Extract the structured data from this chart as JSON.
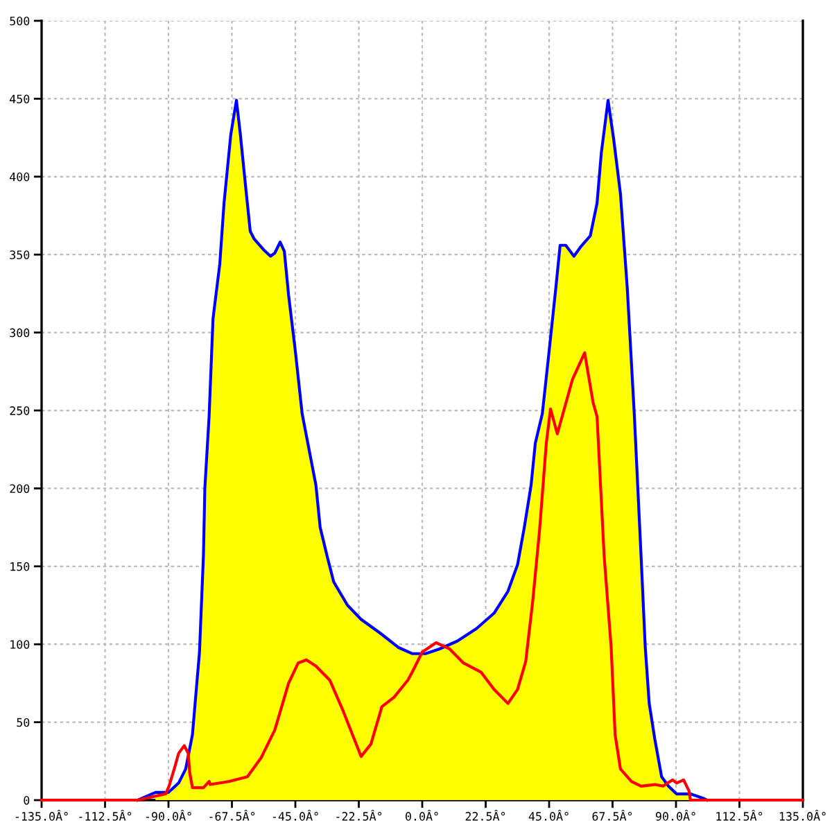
{
  "chart_data": {
    "type": "area",
    "xlim": [
      -135,
      135
    ],
    "ylim": [
      0,
      500
    ],
    "xticks": [
      {
        "value": -135,
        "label": "-135.0Â°"
      },
      {
        "value": -112.5,
        "label": "-112.5Â°"
      },
      {
        "value": -90,
        "label": "-90.0Â°"
      },
      {
        "value": -67.5,
        "label": "-67.5Â°"
      },
      {
        "value": -45,
        "label": "-45.0Â°"
      },
      {
        "value": -22.5,
        "label": "-22.5Â°"
      },
      {
        "value": 0,
        "label": "0.0Â°"
      },
      {
        "value": 22.5,
        "label": "22.5Â°"
      },
      {
        "value": 45,
        "label": "45.0Â°"
      },
      {
        "value": 67.5,
        "label": "67.5Â°"
      },
      {
        "value": 90,
        "label": "90.0Â°"
      },
      {
        "value": 112.5,
        "label": "112.5Â°"
      },
      {
        "value": 135,
        "label": "135.0Â°"
      }
    ],
    "yticks": [
      0,
      50,
      100,
      150,
      200,
      250,
      300,
      350,
      400,
      450,
      500
    ],
    "grid": true,
    "series": [
      {
        "color": "#ffff00",
        "x": [
          -94.6,
          -90,
          -86.4,
          -83.9,
          -81.5,
          -79,
          -77.6,
          -77.1,
          -75.6,
          -74.2,
          -71.8,
          -70.3,
          -67.9,
          -65.9,
          -64.5,
          -63,
          -61,
          -59.6,
          -56.2,
          -53.8,
          -52.3,
          -50.4,
          -48.9,
          -47.4,
          -45,
          -42.6,
          -37.7,
          -36.2,
          -33.8,
          -31.4,
          -26.5,
          -21.7,
          -14.8,
          -8.5,
          -3.6,
          1.2,
          6.1,
          12.4,
          19.2,
          25.5,
          30.4,
          33.8,
          36.2,
          38.6,
          40.1,
          42.6,
          45,
          47.4,
          48.9,
          50.9,
          53.8,
          56.2,
          59.6,
          62,
          63.5,
          65.9,
          67.9,
          70.3,
          72.7,
          75.2,
          77.6,
          79.1,
          80.5,
          82.5,
          84.9,
          87.3,
          90.2,
          95.1
        ],
        "values": [
          5,
          5,
          11,
          20,
          42,
          95,
          157,
          200,
          246,
          309,
          344,
          383,
          427,
          449,
          427,
          400,
          365,
          360,
          353,
          349,
          351,
          358,
          352,
          324,
          288,
          248,
          202,
          175,
          157,
          140,
          125,
          116,
          107,
          98,
          94,
          94,
          97,
          102,
          110,
          120,
          134,
          151,
          175,
          202,
          229,
          248,
          288,
          329,
          356,
          356,
          349,
          355,
          362,
          383,
          415,
          449,
          424,
          389,
          329,
          248,
          157,
          98,
          62,
          39,
          15,
          9,
          4,
          4
        ]
      },
      {
        "type": "line",
        "color": "#0000ff",
        "x": [
          -101,
          -94.6,
          -90,
          -86.4,
          -83.9,
          -81.5,
          -79,
          -77.6,
          -77.1,
          -75.6,
          -74.2,
          -71.8,
          -70.3,
          -67.9,
          -65.9,
          -64.5,
          -63,
          -61,
          -59.6,
          -56.2,
          -53.8,
          -52.3,
          -50.4,
          -48.9,
          -47.4,
          -45,
          -42.6,
          -37.7,
          -36.2,
          -33.8,
          -31.4,
          -26.5,
          -21.7,
          -14.8,
          -8.5,
          -3.6,
          1.2,
          6.1,
          12.4,
          19.2,
          25.5,
          30.4,
          33.8,
          36.2,
          38.6,
          40.1,
          42.6,
          45,
          47.4,
          48.9,
          50.9,
          53.8,
          56.2,
          59.6,
          62,
          63.5,
          65.9,
          67.9,
          70.3,
          72.7,
          75.2,
          77.6,
          79.1,
          80.5,
          82.5,
          84.9,
          87.3,
          90.2,
          95.1,
          99.9,
          101
        ],
        "values": [
          0,
          5,
          5,
          11,
          20,
          42,
          95,
          157,
          200,
          246,
          309,
          344,
          383,
          427,
          449,
          427,
          400,
          365,
          360,
          353,
          349,
          351,
          358,
          352,
          324,
          288,
          248,
          202,
          175,
          157,
          140,
          125,
          116,
          107,
          98,
          94,
          94,
          97,
          102,
          110,
          120,
          134,
          151,
          175,
          202,
          229,
          248,
          288,
          329,
          356,
          356,
          349,
          355,
          362,
          383,
          415,
          449,
          424,
          389,
          329,
          248,
          157,
          98,
          62,
          39,
          15,
          9,
          4,
          4,
          1,
          0
        ]
      },
      {
        "type": "line",
        "color": "#ff0000",
        "x": [
          -135,
          -101,
          -96,
          -91,
          -89.8,
          -87.8,
          -86.4,
          -84.4,
          -83,
          -82.5,
          -81.5,
          -77.6,
          -75.6,
          -75.2,
          -68.4,
          -62,
          -57.2,
          -52.3,
          -47.4,
          -44,
          -41.1,
          -37.7,
          -32.8,
          -28,
          -21.7,
          -18.2,
          -14.3,
          -10,
          -5.1,
          -3.6,
          0,
          4.9,
          9.7,
          14.6,
          20.9,
          25.5,
          30.4,
          33.8,
          36.7,
          39.2,
          41.6,
          44,
          45.5,
          47.9,
          53.3,
          57.6,
          60.6,
          62,
          64.5,
          67,
          68.4,
          70.3,
          74.2,
          77.6,
          82.5,
          85.4,
          88.8,
          90.2,
          92.7,
          94.6,
          95.1,
          135
        ],
        "values": [
          0,
          0,
          2,
          4,
          9,
          21,
          30,
          35,
          30,
          18,
          8,
          8,
          12,
          10,
          12,
          15,
          27,
          45,
          75,
          88,
          90,
          86,
          77,
          57,
          28,
          36,
          60,
          66,
          77,
          82,
          95,
          101,
          97,
          88,
          82,
          71,
          62,
          71,
          89,
          128,
          173,
          229,
          251,
          235,
          270,
          287,
          255,
          246,
          157,
          98,
          42,
          20,
          12,
          9,
          10,
          9,
          13,
          11,
          13,
          6,
          0,
          0
        ]
      }
    ]
  }
}
